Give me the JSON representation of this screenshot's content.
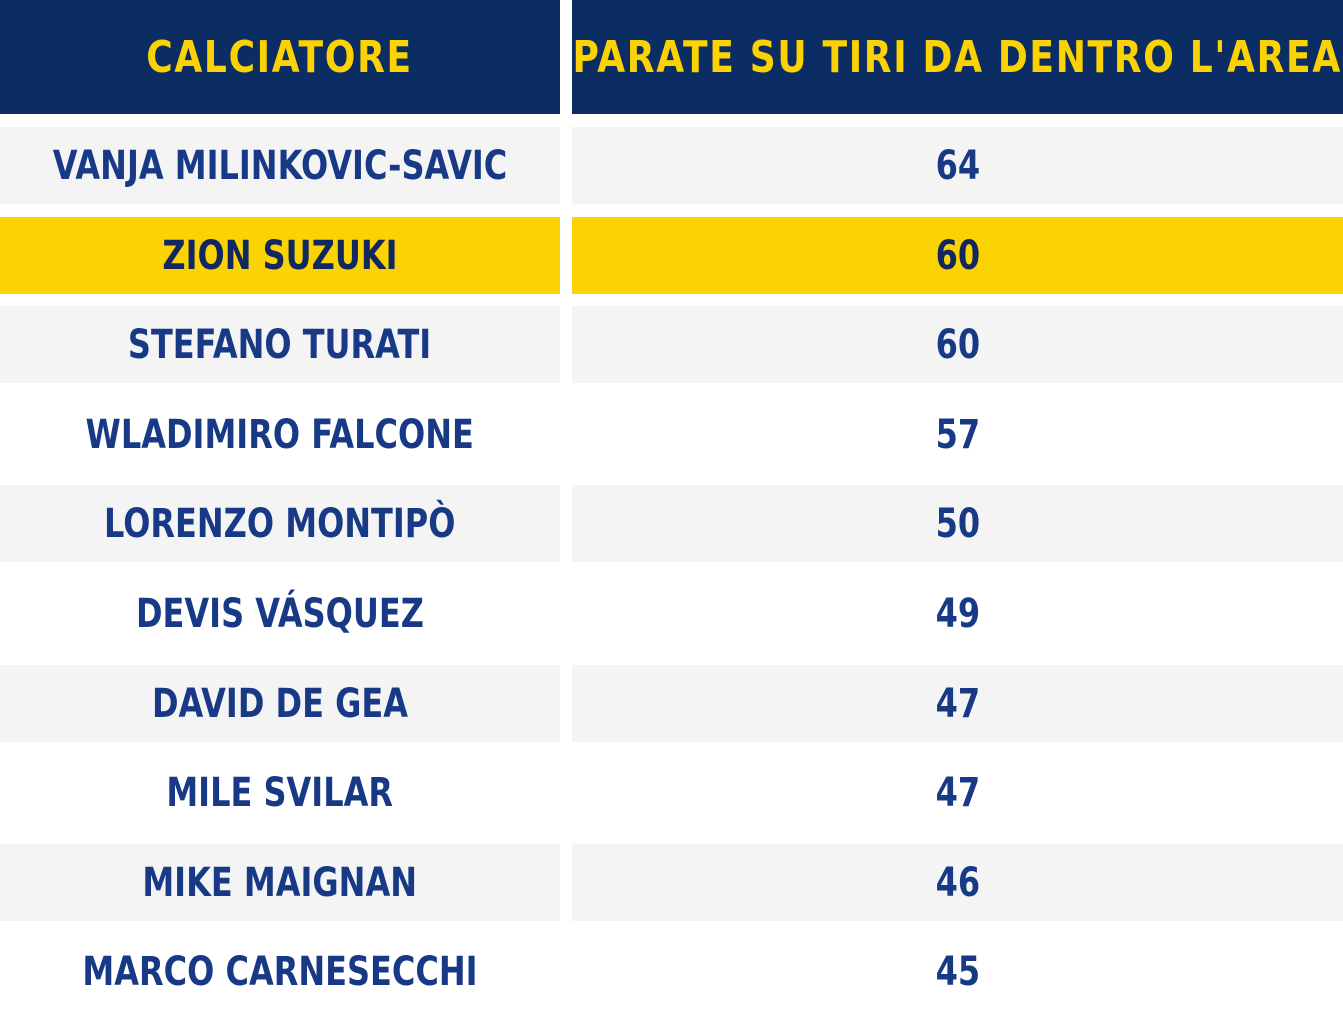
{
  "colors": {
    "header_bg": "#0c2d64",
    "header_text": "#fcd302",
    "body_text": "#183a86",
    "highlight_bg": "#fcd302",
    "stripe_bg": "#f4f4f4"
  },
  "chart_data": {
    "type": "table",
    "columns": [
      "CALCIATORE",
      "PARATE SU TIRI DA DENTRO L'AREA"
    ],
    "rows": [
      {
        "player": "VANJA MILINKOVIC-SAVIC",
        "value": "64",
        "highlight": false
      },
      {
        "player": "ZION SUZUKI",
        "value": "60",
        "highlight": true
      },
      {
        "player": "STEFANO TURATI",
        "value": "60",
        "highlight": false
      },
      {
        "player": "WLADIMIRO FALCONE",
        "value": "57",
        "highlight": false
      },
      {
        "player": "LORENZO MONTIPÒ",
        "value": "50",
        "highlight": false
      },
      {
        "player": "DEVIS VÁSQUEZ",
        "value": "49",
        "highlight": false
      },
      {
        "player": "DAVID DE GEA",
        "value": "47",
        "highlight": false
      },
      {
        "player": "MILE SVILAR",
        "value": "47",
        "highlight": false
      },
      {
        "player": "MIKE MAIGNAN",
        "value": "46",
        "highlight": false
      },
      {
        "player": "MARCO CARNESECCHI",
        "value": "45",
        "highlight": false
      }
    ]
  }
}
